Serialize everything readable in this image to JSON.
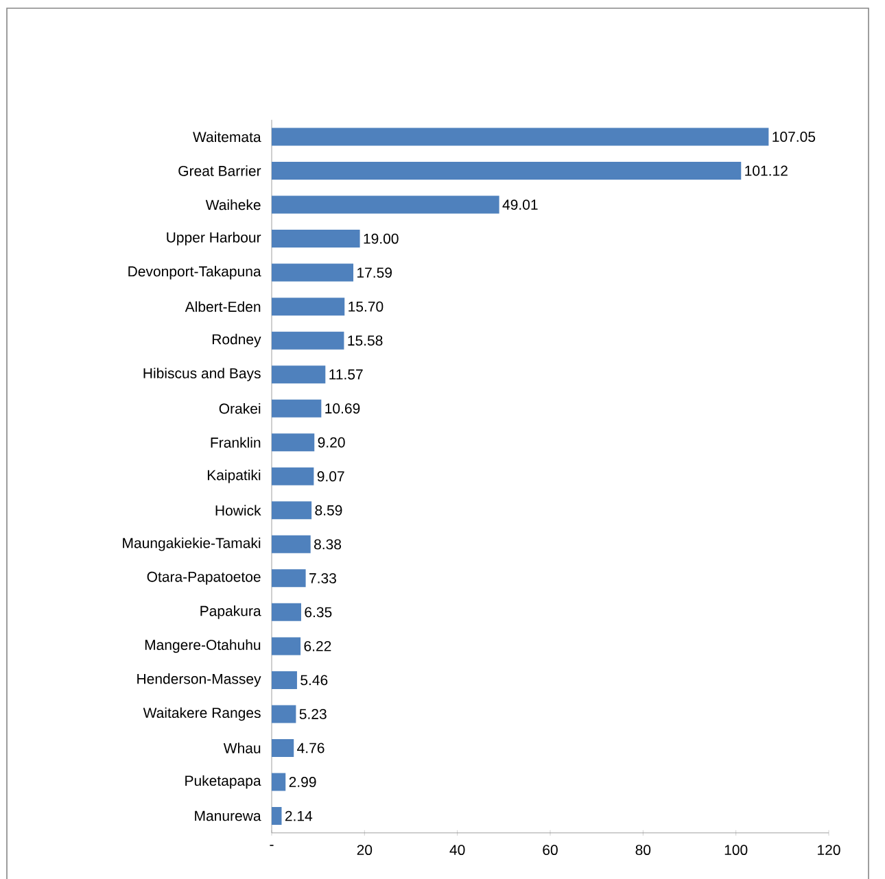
{
  "chart_data": {
    "type": "bar",
    "orientation": "horizontal",
    "color": "#4f81bd",
    "categories": [
      "Waitemata",
      "Great Barrier",
      "Waiheke",
      "Upper Harbour",
      "Devonport-Takapuna",
      "Albert-Eden",
      "Rodney",
      "Hibiscus and Bays",
      "Orakei",
      "Franklin",
      "Kaipatiki",
      "Howick",
      "Maungakiekie-Tamaki",
      "Otara-Papatoetoe",
      "Papakura",
      "Mangere-Otahuhu",
      "Henderson-Massey",
      "Waitakere Ranges",
      "Whau",
      "Puketapapa",
      "Manurewa"
    ],
    "values": [
      107.05,
      101.12,
      49.01,
      19.0,
      17.59,
      15.7,
      15.58,
      11.57,
      10.69,
      9.2,
      9.07,
      8.59,
      8.38,
      7.33,
      6.35,
      6.22,
      5.46,
      5.23,
      4.76,
      2.99,
      2.14
    ],
    "value_labels": [
      "107.05",
      "101.12",
      "49.01",
      "19.00",
      "17.59",
      "15.70",
      "15.58",
      "11.57",
      "10.69",
      "9.20",
      "9.07",
      "8.59",
      "8.38",
      "7.33",
      "6.35",
      "6.22",
      "5.46",
      "5.23",
      "4.76",
      "2.99",
      "2.14"
    ],
    "xlim": [
      0,
      120
    ],
    "xticks": [
      {
        "value": 0,
        "label": "-"
      },
      20,
      40,
      60,
      80,
      100,
      120
    ]
  }
}
